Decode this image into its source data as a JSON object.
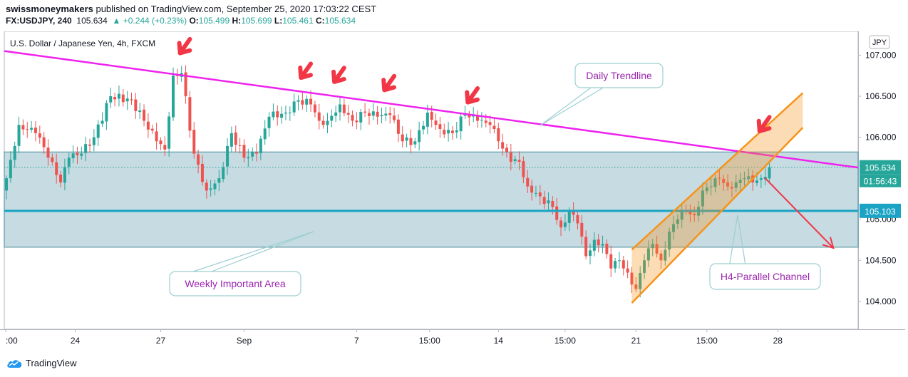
{
  "header": {
    "author": "swissmoneymakers",
    "published_text": " published on TradingView.com, September 25, 2020 17:03:22 CEST",
    "symbol": "FX:USDJPY, 240",
    "last": "105.634",
    "change_arrow": "▲",
    "change": "+0.244 (+0.23%)",
    "o_label": "O:",
    "o": "105.499",
    "h_label": "H:",
    "h": "105.699",
    "l_label": "L:",
    "l": "105.461",
    "c_label": "C:",
    "c": "105.634"
  },
  "chart_title": "U.S. Dollar / Japanese Yen, 4h, FXCM",
  "currency": "JPY",
  "price_tag": "105.634",
  "countdown": "01:56:43",
  "level_tag": "105.103",
  "footer": {
    "brand": "TradingView",
    "logo_icon": "tradingview-cloud-icon"
  },
  "colors": {
    "bull": "#26a69a",
    "bear": "#ef5350",
    "trendline": "#ee22ee",
    "level": "#1aa3c4",
    "zone_fill": "#c6dbe2",
    "channel": "#f7931a",
    "arrow": "#f23645",
    "annotation_text": "#9c27b0"
  },
  "annotations": [
    "Daily Trendline",
    "Weekly Important Area",
    "H4-Parallel Channel"
  ],
  "chart_data": {
    "type": "candlestick",
    "title": "U.S. Dollar / Japanese Yen, 4h, FXCM",
    "ylim": [
      103.66,
      107.29
    ],
    "y_ticks": [
      "107.000",
      "106.500",
      "106.000",
      "105.000",
      "104.500",
      "104.000"
    ],
    "x_ticks": [
      ":00",
      "24",
      "27",
      "Sep",
      "7",
      "15:00",
      "14",
      "15:00",
      "21",
      "15:00",
      "28"
    ],
    "levels": {
      "last": 105.634,
      "horizontal": 105.103,
      "zone": [
        104.66,
        105.82
      ]
    },
    "trendline": [
      [
        0,
        107.05
      ],
      [
        205,
        105.63
      ]
    ],
    "channel": {
      "lower": [
        [
          150,
          103.98
        ],
        [
          183,
          105.7
        ]
      ],
      "upper": [
        [
          150,
          104.63
        ],
        [
          188,
          106.4
        ]
      ]
    },
    "projection": [
      [
        182,
        105.5
      ],
      [
        198,
        104.65
      ]
    ],
    "candles": []
  }
}
